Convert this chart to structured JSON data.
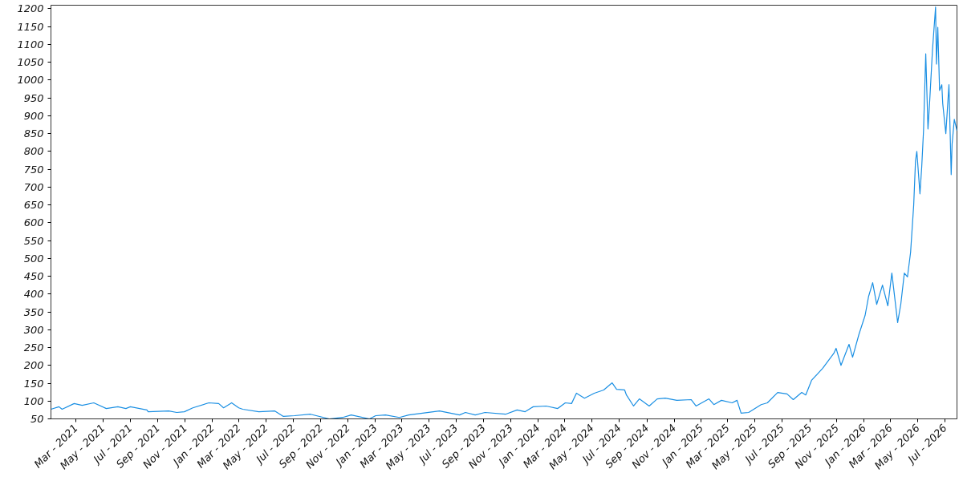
{
  "chart_data": {
    "type": "line",
    "x": [
      "2021-01-04",
      "2021-01-22",
      "2021-01-29",
      "2021-02-25",
      "2021-03-15",
      "2021-04-10",
      "2021-05-08",
      "2021-06-03",
      "2021-06-21",
      "2021-07-01",
      "2021-08-07",
      "2021-08-10",
      "2021-09-25",
      "2021-10-13",
      "2021-10-30",
      "2021-11-18",
      "2021-12-24",
      "2022-01-15",
      "2022-01-26",
      "2022-02-13",
      "2022-03-01",
      "2022-03-10",
      "2022-04-15",
      "2022-05-21",
      "2022-06-09",
      "2022-07-04",
      "2022-08-09",
      "2022-09-20",
      "2022-10-20",
      "2022-11-08",
      "2022-12-19",
      "2023-01-02",
      "2023-01-24",
      "2023-02-24",
      "2023-03-17",
      "2023-05-25",
      "2023-07-09",
      "2023-07-22",
      "2023-08-13",
      "2023-09-04",
      "2023-10-20",
      "2023-11-15",
      "2023-12-03",
      "2023-12-21",
      "2024-01-19",
      "2024-02-14",
      "2024-03-02",
      "2024-03-16",
      "2024-03-27",
      "2024-04-14",
      "2024-05-06",
      "2024-05-27",
      "2024-06-15",
      "2024-06-25",
      "2024-07-13",
      "2024-07-17",
      "2024-08-02",
      "2024-08-15",
      "2024-09-06",
      "2024-09-24",
      "2024-10-12",
      "2024-11-07",
      "2024-12-09",
      "2024-12-20",
      "2025-01-18",
      "2025-01-29",
      "2025-02-15",
      "2025-03-11",
      "2025-03-22",
      "2025-03-31",
      "2025-04-17",
      "2025-05-15",
      "2025-05-29",
      "2025-06-21",
      "2025-07-12",
      "2025-07-26",
      "2025-08-14",
      "2025-08-23",
      "2025-09-05",
      "2025-09-30",
      "2025-10-25",
      "2025-10-30",
      "2025-11-10",
      "2025-11-28",
      "2025-12-06",
      "2025-12-20",
      "2026-01-03",
      "2026-01-11",
      "2026-01-20",
      "2026-01-29",
      "2026-02-11",
      "2026-02-23",
      "2026-03-04",
      "2026-03-17",
      "2026-03-24",
      "2026-04-01",
      "2026-04-08",
      "2026-04-15",
      "2026-04-22",
      "2026-04-26",
      "2026-04-29",
      "2026-05-06",
      "2026-05-10",
      "2026-05-14",
      "2026-05-19",
      "2026-05-24",
      "2026-05-28",
      "2026-06-03",
      "2026-06-10",
      "2026-06-12",
      "2026-06-15",
      "2026-06-19",
      "2026-06-24",
      "2026-06-26",
      "2026-07-03",
      "2026-07-10",
      "2026-07-15",
      "2026-07-17",
      "2026-07-22",
      "2026-07-28"
    ],
    "series": [
      {
        "color": "#1a8fe3",
        "values": [
          77,
          84,
          77,
          93,
          88,
          95,
          79,
          84,
          79,
          84,
          75,
          70,
          72,
          68,
          70,
          81,
          95,
          93,
          81,
          95,
          81,
          77,
          70,
          72,
          57,
          59,
          63,
          50,
          54,
          61,
          50,
          59,
          61,
          54,
          61,
          72,
          61,
          68,
          61,
          68,
          63,
          75,
          70,
          84,
          86,
          79,
          95,
          93,
          122,
          108,
          122,
          131,
          151,
          133,
          131,
          117,
          86,
          106,
          86,
          106,
          108,
          102,
          104,
          86,
          106,
          90,
          102,
          95,
          102,
          66,
          68,
          90,
          95,
          124,
          120,
          104,
          124,
          117,
          158,
          192,
          234,
          248,
          200,
          259,
          223,
          286,
          340,
          394,
          432,
          371,
          425,
          367,
          459,
          320,
          371,
          459,
          448,
          517,
          650,
          773,
          800,
          681,
          757,
          858,
          1074,
          863,
          944,
          1083,
          1205,
          1045,
          1148,
          971,
          987,
          935,
          850,
          987,
          735,
          820,
          890,
          858
        ]
      }
    ],
    "xlim": [
      "2021-01-04",
      "2026-07-28"
    ],
    "xticks": [
      {
        "value": "2021-03-01",
        "label": "Mar - 2021"
      },
      {
        "value": "2021-05-01",
        "label": "May - 2021"
      },
      {
        "value": "2021-07-01",
        "label": "Jul - 2021"
      },
      {
        "value": "2021-09-01",
        "label": "Sep - 2021"
      },
      {
        "value": "2021-11-01",
        "label": "Nov - 2021"
      },
      {
        "value": "2022-01-01",
        "label": "Jan - 2022"
      },
      {
        "value": "2022-03-01",
        "label": "Mar - 2022"
      },
      {
        "value": "2022-05-01",
        "label": "May - 2022"
      },
      {
        "value": "2022-07-01",
        "label": "Jul - 2022"
      },
      {
        "value": "2022-09-01",
        "label": "Sep - 2022"
      },
      {
        "value": "2022-11-01",
        "label": "Nov - 2022"
      },
      {
        "value": "2023-01-01",
        "label": "Jan - 2023"
      },
      {
        "value": "2023-03-01",
        "label": "Mar - 2023"
      },
      {
        "value": "2023-05-01",
        "label": "May - 2023"
      },
      {
        "value": "2023-07-01",
        "label": "Jul - 2023"
      },
      {
        "value": "2023-09-01",
        "label": "Sep - 2023"
      },
      {
        "value": "2023-11-01",
        "label": "Nov - 2023"
      },
      {
        "value": "2024-01-01",
        "label": "Jan - 2024"
      },
      {
        "value": "2024-03-01",
        "label": "Mar - 2024"
      },
      {
        "value": "2024-05-01",
        "label": "May - 2024"
      },
      {
        "value": "2024-07-01",
        "label": "Jul - 2024"
      },
      {
        "value": "2024-09-01",
        "label": "Sep - 2024"
      },
      {
        "value": "2024-11-01",
        "label": "Nov - 2024"
      },
      {
        "value": "2025-01-01",
        "label": "Jan - 2025"
      },
      {
        "value": "2025-03-01",
        "label": "Mar - 2025"
      },
      {
        "value": "2025-05-01",
        "label": "May - 2025"
      },
      {
        "value": "2025-07-01",
        "label": "Jul - 2025"
      },
      {
        "value": "2025-09-01",
        "label": "Sep - 2025"
      },
      {
        "value": "2025-11-01",
        "label": "Nov - 2025"
      },
      {
        "value": "2026-01-01",
        "label": "Jan - 2026"
      },
      {
        "value": "2026-03-01",
        "label": "Mar - 2026"
      },
      {
        "value": "2026-05-01",
        "label": "May - 2026"
      },
      {
        "value": "2026-07-01",
        "label": "Jul - 2026"
      }
    ],
    "ylim": [
      50,
      1210
    ],
    "yticks": [
      50,
      100,
      150,
      200,
      250,
      300,
      350,
      400,
      450,
      500,
      550,
      600,
      650,
      700,
      750,
      800,
      850,
      900,
      950,
      1000,
      1050,
      1100,
      1150,
      1200
    ],
    "grid": false,
    "marker": "none",
    "line_style": "solid"
  }
}
